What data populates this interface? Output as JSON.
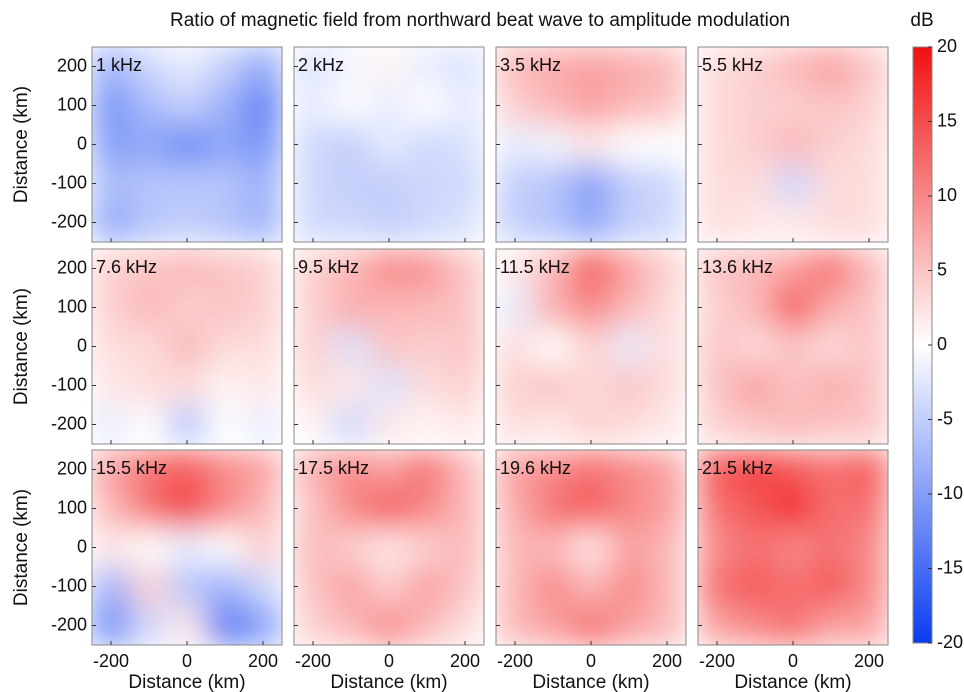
{
  "chart_data": {
    "type": "heatmap",
    "title": "Ratio of magnetic field from northward beat wave to amplitude modulation",
    "colorbar_label": "dB",
    "clim": [
      -20,
      20
    ],
    "cticks": [
      20,
      15,
      10,
      5,
      0,
      -5,
      -10,
      -15,
      -20
    ],
    "colormap": [
      "#0a3cf0",
      "#ffffff",
      "#f01010"
    ],
    "xlim": [
      -250,
      250
    ],
    "ylim": [
      -250,
      250
    ],
    "xticks": [
      -200,
      0,
      200
    ],
    "yticks": [
      200,
      100,
      0,
      -100,
      -200
    ],
    "xlabel": "Distance (km)",
    "ylabel": "Distance (km)",
    "panels": [
      {
        "label": "1 kHz",
        "z": [
          [
            -8,
            -4,
            -2,
            -5,
            -9
          ],
          [
            -11,
            -7,
            -5,
            -8,
            -13
          ],
          [
            -10,
            -9,
            -12,
            -9,
            -11
          ],
          [
            -7,
            -6,
            -6,
            -6,
            -8
          ],
          [
            -9,
            -6,
            -5,
            -6,
            -8
          ]
        ]
      },
      {
        "label": "2 kHz",
        "z": [
          [
            -3,
            -1,
            1,
            -2,
            -3
          ],
          [
            -2,
            0,
            -2,
            0,
            -2
          ],
          [
            -4,
            -5,
            -2,
            -4,
            -3
          ],
          [
            -4,
            -5,
            -5,
            -4,
            -4
          ],
          [
            -4,
            -4,
            -5,
            -4,
            -3
          ]
        ]
      },
      {
        "label": "3.5 kHz",
        "z": [
          [
            6,
            7,
            8,
            7,
            6
          ],
          [
            4,
            6,
            8,
            6,
            5
          ],
          [
            -2,
            -1,
            2,
            0,
            0
          ],
          [
            -5,
            -6,
            -10,
            -5,
            -4
          ],
          [
            -5,
            -6,
            -9,
            -5,
            -4
          ]
        ]
      },
      {
        "label": "5.5 kHz",
        "z": [
          [
            3,
            4,
            6,
            8,
            5
          ],
          [
            3,
            4,
            4,
            5,
            4
          ],
          [
            3,
            4,
            6,
            4,
            3
          ],
          [
            3,
            3,
            -4,
            3,
            3
          ],
          [
            3,
            2,
            2,
            3,
            3
          ]
        ]
      },
      {
        "label": "7.6 kHz",
        "z": [
          [
            4,
            5,
            6,
            5,
            4
          ],
          [
            4,
            6,
            4,
            5,
            4
          ],
          [
            3,
            3,
            6,
            3,
            3
          ],
          [
            2,
            3,
            3,
            1,
            2
          ],
          [
            -2,
            0,
            -6,
            0,
            -2
          ]
        ]
      },
      {
        "label": "9.5 kHz",
        "z": [
          [
            4,
            6,
            10,
            9,
            5
          ],
          [
            4,
            7,
            6,
            6,
            5
          ],
          [
            4,
            -3,
            5,
            4,
            5
          ],
          [
            3,
            2,
            -3,
            3,
            4
          ],
          [
            1,
            -4,
            2,
            1,
            2
          ]
        ]
      },
      {
        "label": "11.5 kHz",
        "z": [
          [
            2,
            6,
            14,
            8,
            4
          ],
          [
            -2,
            7,
            10,
            6,
            3
          ],
          [
            3,
            0,
            4,
            -2,
            3
          ],
          [
            4,
            5,
            3,
            5,
            3
          ],
          [
            3,
            2,
            4,
            3,
            2
          ]
        ]
      },
      {
        "label": "13.6 kHz",
        "z": [
          [
            5,
            6,
            8,
            12,
            6
          ],
          [
            4,
            6,
            14,
            7,
            5
          ],
          [
            5,
            3,
            5,
            3,
            5
          ],
          [
            5,
            8,
            5,
            7,
            5
          ],
          [
            4,
            5,
            6,
            5,
            5
          ]
        ]
      },
      {
        "label": "15.5 kHz",
        "z": [
          [
            8,
            12,
            14,
            10,
            8
          ],
          [
            6,
            12,
            16,
            10,
            6
          ],
          [
            2,
            0,
            -2,
            0,
            4
          ],
          [
            -8,
            4,
            -6,
            -8,
            -4
          ],
          [
            -12,
            -4,
            2,
            -14,
            -10
          ]
        ]
      },
      {
        "label": "17.5 kHz",
        "z": [
          [
            7,
            10,
            8,
            12,
            6
          ],
          [
            5,
            10,
            14,
            10,
            6
          ],
          [
            6,
            4,
            2,
            4,
            6
          ],
          [
            5,
            8,
            4,
            8,
            5
          ],
          [
            4,
            6,
            10,
            6,
            3
          ]
        ]
      },
      {
        "label": "19.6 kHz",
        "z": [
          [
            8,
            10,
            12,
            10,
            8
          ],
          [
            7,
            12,
            14,
            10,
            8
          ],
          [
            6,
            6,
            2,
            8,
            6
          ],
          [
            6,
            10,
            6,
            10,
            6
          ],
          [
            6,
            8,
            12,
            8,
            6
          ]
        ]
      },
      {
        "label": "21.5 kHz",
        "z": [
          [
            14,
            16,
            14,
            12,
            14
          ],
          [
            12,
            14,
            18,
            12,
            12
          ],
          [
            10,
            12,
            10,
            12,
            10
          ],
          [
            12,
            14,
            12,
            14,
            10
          ],
          [
            8,
            10,
            12,
            8,
            8
          ]
        ]
      }
    ]
  }
}
